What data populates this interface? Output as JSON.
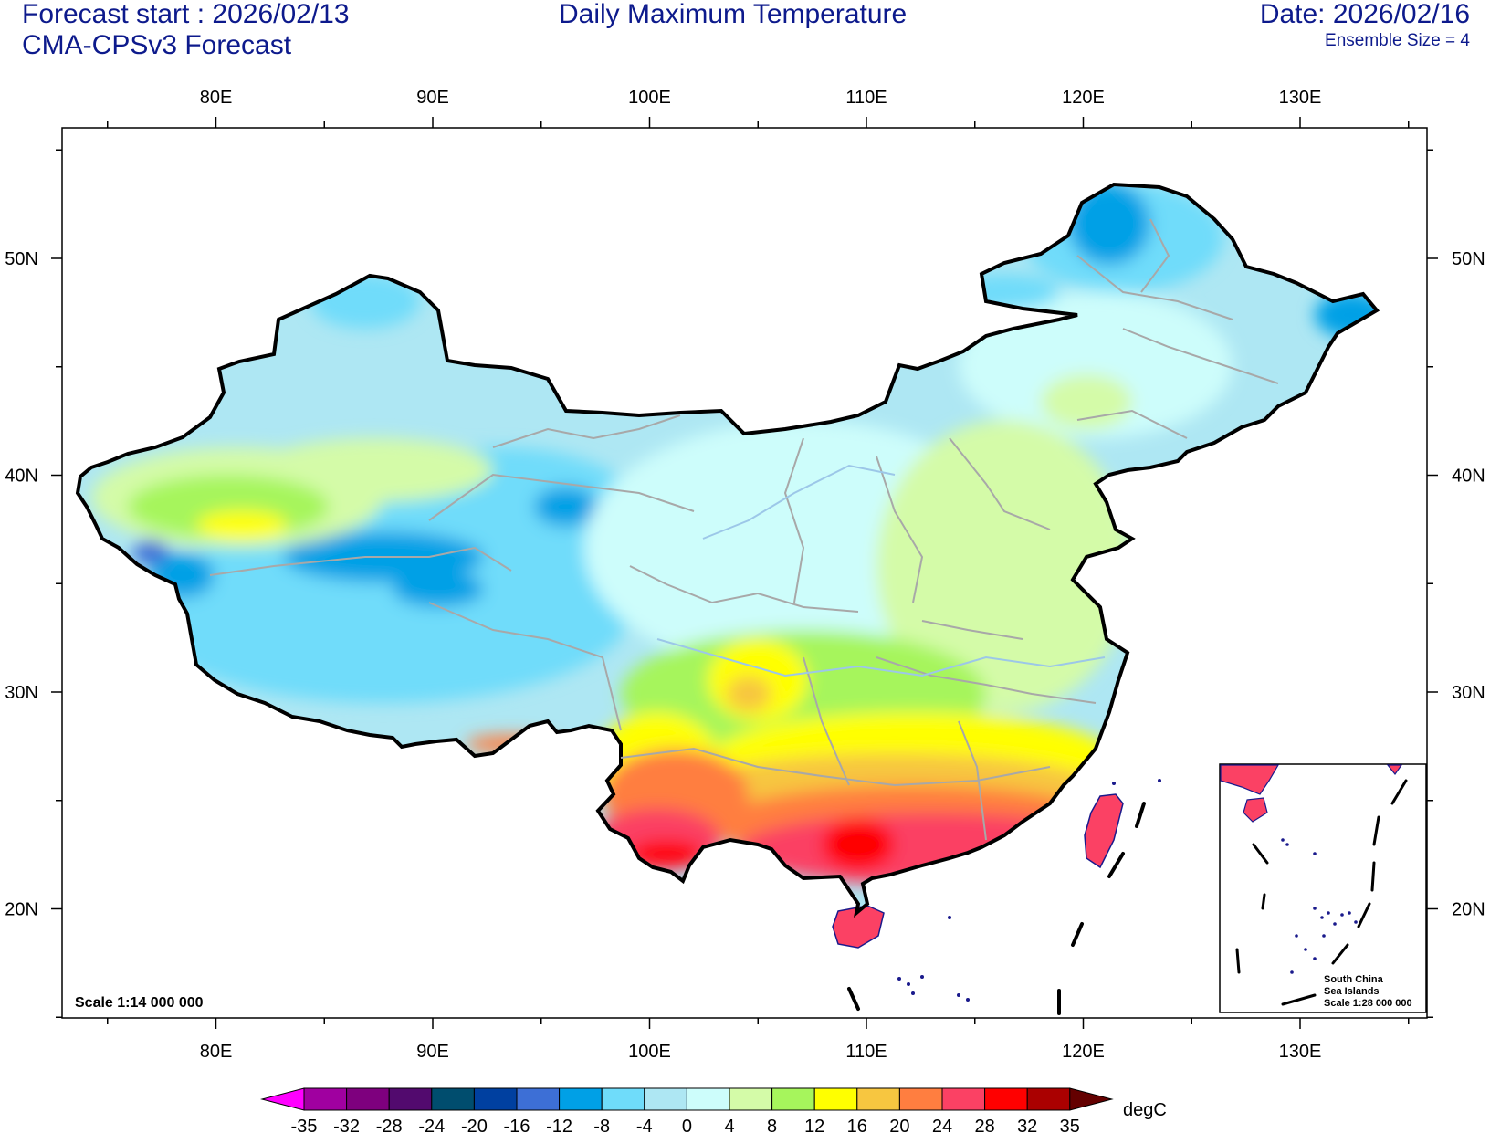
{
  "header": {
    "forecast_start": "Forecast start : 2026/02/13",
    "model": "CMA-CPSv3 Forecast",
    "title": "Daily Maximum Temperature",
    "date": "Date: 2026/02/16",
    "ensemble": "Ensemble Size = 4"
  },
  "axes": {
    "lon_labels": [
      "80E",
      "90E",
      "100E",
      "110E",
      "120E",
      "130E"
    ],
    "lat_labels": [
      "50N",
      "40N",
      "30N",
      "20N"
    ]
  },
  "map": {
    "scale_label": "Scale 1:14 000 000",
    "inset_lines": [
      "South China",
      "Sea Islands",
      "Scale 1:28 000 000"
    ]
  },
  "colorbar": {
    "unit": "degC",
    "levels": [
      "-35",
      "-32",
      "-28",
      "-24",
      "-20",
      "-16",
      "-12",
      "-8",
      "-4",
      "0",
      "4",
      "8",
      "12",
      "16",
      "20",
      "24",
      "28",
      "32",
      "35"
    ],
    "colors": [
      "#ff00ff",
      "#a000a0",
      "#7e007e",
      "#520a6e",
      "#004d6e",
      "#0040a0",
      "#3d6fd6",
      "#00a0e6",
      "#6fdcfa",
      "#aee7f3",
      "#cdfdfb",
      "#d4fba8",
      "#a6f55c",
      "#ffff00",
      "#f7c640",
      "#ff7e40",
      "#fb4164",
      "#ff0000",
      "#aa0000",
      "#640000"
    ]
  },
  "chart_data": {
    "type": "heatmap",
    "title": "Daily Maximum Temperature",
    "lon_range": [
      "73E",
      "135E"
    ],
    "lat_range": [
      "15N",
      "55N"
    ],
    "unit": "degC",
    "levels": [
      -35,
      -32,
      -28,
      -24,
      -20,
      -16,
      -12,
      -8,
      -4,
      0,
      4,
      8,
      12,
      16,
      20,
      24,
      28,
      32,
      35
    ]
  }
}
